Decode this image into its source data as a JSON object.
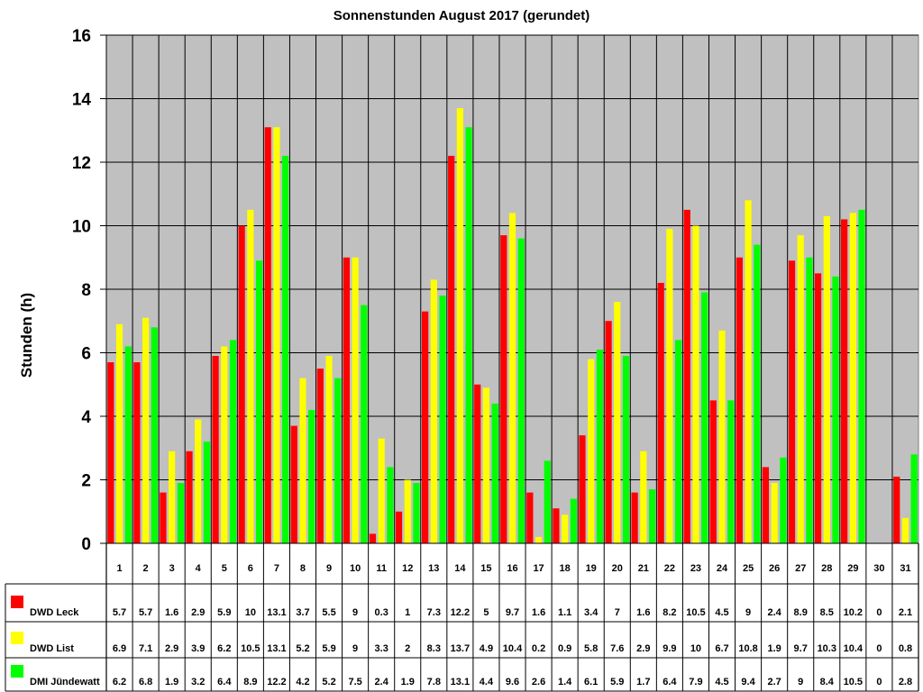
{
  "chart_data": {
    "type": "bar",
    "title": "Sonnenstunden August 2017 (gerundet)",
    "xlabel": "",
    "ylabel": "Stunden (h)",
    "ylim": [
      0,
      16
    ],
    "yticks": [
      0,
      2,
      4,
      6,
      8,
      10,
      12,
      14,
      16
    ],
    "grid": true,
    "legend_position": "data-table-left",
    "categories": [
      "1",
      "2",
      "3",
      "4",
      "5",
      "6",
      "7",
      "8",
      "9",
      "10",
      "11",
      "12",
      "13",
      "14",
      "15",
      "16",
      "17",
      "18",
      "19",
      "20",
      "21",
      "22",
      "23",
      "24",
      "25",
      "26",
      "27",
      "28",
      "29",
      "30",
      "31"
    ],
    "series": [
      {
        "name": "DWD Leck",
        "color": "#ff0000",
        "values": [
          5.7,
          5.7,
          1.6,
          2.9,
          5.9,
          10,
          13.1,
          3.7,
          5.5,
          9,
          0.3,
          1,
          7.3,
          12.2,
          5,
          9.7,
          1.6,
          1.1,
          3.4,
          7,
          1.6,
          8.2,
          10.5,
          4.5,
          9,
          2.4,
          8.9,
          8.5,
          10.2,
          0,
          2.1
        ]
      },
      {
        "name": "DWD List",
        "color": "#ffff00",
        "values": [
          6.9,
          7.1,
          2.9,
          3.9,
          6.2,
          10.5,
          13.1,
          5.2,
          5.9,
          9,
          3.3,
          2,
          8.3,
          13.7,
          4.9,
          10.4,
          0.2,
          0.9,
          5.8,
          7.6,
          2.9,
          9.9,
          10,
          6.7,
          10.8,
          1.9,
          9.7,
          10.3,
          10.4,
          0,
          0.8
        ]
      },
      {
        "name": "DMI Jündewatt",
        "color": "#00ff00",
        "values": [
          6.2,
          6.8,
          1.9,
          3.2,
          6.4,
          8.9,
          12.2,
          4.2,
          5.2,
          7.5,
          2.4,
          1.9,
          7.8,
          13.1,
          4.4,
          9.6,
          2.6,
          1.4,
          6.1,
          5.9,
          1.7,
          6.4,
          7.9,
          4.5,
          9.4,
          2.7,
          9,
          8.4,
          10.5,
          0,
          2.8
        ]
      }
    ],
    "plot_background": "#c0c0c0",
    "data_table": true
  }
}
